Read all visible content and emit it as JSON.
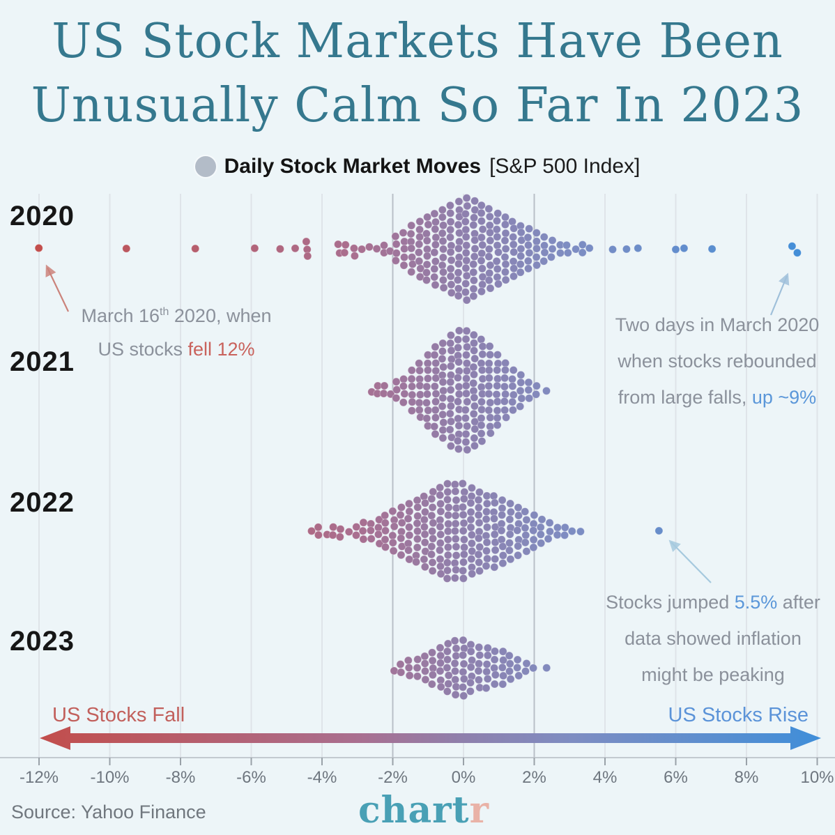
{
  "title": {
    "line1": "US Stock Markets Have Been",
    "line2": "Unusually Calm So Far In 2023"
  },
  "legend": {
    "dot_color": "#b3bcc8",
    "label_bold": "Daily Stock Market Moves",
    "label_suffix": "[S&P 500 Index]"
  },
  "years": {
    "y2020": "2020",
    "y2021": "2021",
    "y2022": "2022",
    "y2023": "2023"
  },
  "annotations": {
    "march16": {
      "line1_pre": "March 16",
      "line1_sup": "th",
      "line1_post": " 2020, when",
      "line2_gray": "US stocks ",
      "line2_accent": "fell 12%",
      "points_to_pct": -11.98
    },
    "rebound": {
      "line1": "Two days in March 2020",
      "line2": "when stocks rebounded",
      "line3_gray": "from large falls, ",
      "line3_accent": "up ~9%",
      "points_to_pct": [
        9.29,
        9.38
      ]
    },
    "inflation": {
      "line1_gray": "Stocks jumped ",
      "line1_accent": "5.5%",
      "line1_post": " after",
      "line2": "data showed inflation",
      "line3": "might be peaking",
      "points_to_pct": 5.54
    }
  },
  "direction_labels": {
    "fall": "US Stocks Fall",
    "rise": "US Stocks Rise"
  },
  "footer": {
    "source": "Source: Yahoo Finance",
    "logo_teal": "chart",
    "logo_pink": "r"
  },
  "colors": {
    "background": "#edf5f8",
    "title": "#35788e",
    "annotation_gray": "#8b919b",
    "accent_red": "#c9625c",
    "accent_blue": "#5b97d9",
    "grid_light": "#dfe4e9",
    "grid_dark": "#b9c0c7",
    "axis_line": "#c3cad0",
    "tick_mark": "#99a1a8",
    "arrow_red": "#cb837b",
    "arrow_blue": "#9fc0da",
    "arrow_lightblue": "#a5c9de",
    "dot_gradient": [
      {
        "at": -12,
        "color": "#c24e4c"
      },
      {
        "at": -3,
        "color": "#a96f90"
      },
      {
        "at": 0,
        "color": "#8e80ad"
      },
      {
        "at": 3,
        "color": "#7e8dc2"
      },
      {
        "at": 10,
        "color": "#3f8ed9"
      }
    ]
  },
  "chart_data": {
    "type": "beeswarm",
    "title": "Daily Stock Market Moves [S&P 500 Index]",
    "x_unit": "percent daily move",
    "axis": {
      "min": -12,
      "max": 10,
      "ticks": [
        -12,
        -10,
        -8,
        -6,
        -4,
        -2,
        0,
        2,
        4,
        6,
        8,
        10
      ],
      "tick_labels": [
        "-12%",
        "-10%",
        "-8%",
        "-6%",
        "-4%",
        "-2%",
        "0%",
        "2%",
        "4%",
        "6%",
        "8%",
        "10%"
      ],
      "grid": true
    },
    "rows": [
      {
        "year": "2020",
        "columns": [
          [
            -11.98,
            1
          ],
          [
            -9.51,
            1
          ],
          [
            -7.6,
            1
          ],
          [
            -5.89,
            1
          ],
          [
            -5.18,
            1
          ],
          [
            -4.76,
            1
          ],
          [
            -4.42,
            3
          ],
          [
            -3.52,
            2
          ],
          [
            -3.34,
            2
          ],
          [
            -3.1,
            2,
            0.4
          ],
          [
            -2.88,
            1
          ],
          [
            -2.66,
            1,
            -0.3
          ],
          [
            -2.46,
            1
          ],
          [
            -2.26,
            2
          ],
          [
            -2.08,
            1,
            0.3
          ],
          [
            -1.9,
            4
          ],
          [
            -1.68,
            5
          ],
          [
            -1.46,
            7
          ],
          [
            -1.24,
            8
          ],
          [
            -1.02,
            9
          ],
          [
            -0.8,
            10
          ],
          [
            -0.58,
            11
          ],
          [
            -0.36,
            12
          ],
          [
            -0.14,
            13
          ],
          [
            0.08,
            14
          ],
          [
            0.3,
            13
          ],
          [
            0.52,
            12
          ],
          [
            0.74,
            11
          ],
          [
            0.96,
            10
          ],
          [
            1.18,
            9
          ],
          [
            1.4,
            8
          ],
          [
            1.62,
            7
          ],
          [
            1.84,
            6
          ],
          [
            2.06,
            5
          ],
          [
            2.28,
            4
          ],
          [
            2.5,
            3
          ],
          [
            2.72,
            2
          ],
          [
            2.94,
            2
          ],
          [
            3.16,
            1
          ],
          [
            3.38,
            2
          ],
          [
            3.54,
            1
          ],
          [
            4.22,
            1
          ],
          [
            4.59,
            1
          ],
          [
            4.95,
            1
          ],
          [
            6.01,
            1
          ],
          [
            6.25,
            1
          ],
          [
            7.04,
            1
          ],
          [
            9.3,
            1,
            -0.4
          ],
          [
            9.42,
            1,
            0.5
          ]
        ]
      },
      {
        "year": "2021",
        "columns": [
          [
            -2.6,
            1,
            0.2
          ],
          [
            -2.45,
            2
          ],
          [
            -2.25,
            2
          ],
          [
            -2.08,
            1,
            0.4
          ],
          [
            -1.9,
            3
          ],
          [
            -1.68,
            4
          ],
          [
            -1.46,
            6
          ],
          [
            -1.24,
            8
          ],
          [
            -1.02,
            10
          ],
          [
            -0.8,
            12
          ],
          [
            -0.58,
            13
          ],
          [
            -0.36,
            15
          ],
          [
            -0.14,
            16
          ],
          [
            0.08,
            16
          ],
          [
            0.3,
            15
          ],
          [
            0.52,
            14
          ],
          [
            0.74,
            12
          ],
          [
            0.96,
            10
          ],
          [
            1.18,
            8
          ],
          [
            1.4,
            6
          ],
          [
            1.62,
            5
          ],
          [
            1.84,
            3
          ],
          [
            2.06,
            2
          ],
          [
            2.36,
            1
          ]
        ]
      },
      {
        "year": "2022",
        "columns": [
          [
            -4.3,
            1
          ],
          [
            -4.1,
            2
          ],
          [
            -3.88,
            1,
            0.4
          ],
          [
            -3.7,
            2
          ],
          [
            -3.48,
            2,
            0.3
          ],
          [
            -3.26,
            1
          ],
          [
            -3.04,
            2
          ],
          [
            -2.82,
            3
          ],
          [
            -2.6,
            3
          ],
          [
            -2.4,
            4
          ],
          [
            -2.2,
            5
          ],
          [
            -1.98,
            6
          ],
          [
            -1.76,
            7
          ],
          [
            -1.54,
            8
          ],
          [
            -1.32,
            9
          ],
          [
            -1.1,
            10
          ],
          [
            -0.88,
            11
          ],
          [
            -0.66,
            12
          ],
          [
            -0.44,
            13
          ],
          [
            -0.22,
            13
          ],
          [
            0.0,
            13
          ],
          [
            0.22,
            12
          ],
          [
            0.44,
            11
          ],
          [
            0.66,
            10
          ],
          [
            0.88,
            10
          ],
          [
            1.1,
            9
          ],
          [
            1.32,
            8
          ],
          [
            1.54,
            7
          ],
          [
            1.76,
            6
          ],
          [
            1.98,
            5
          ],
          [
            2.2,
            4
          ],
          [
            2.42,
            3
          ],
          [
            2.64,
            2
          ],
          [
            2.86,
            2
          ],
          [
            3.08,
            1
          ],
          [
            3.3,
            1
          ],
          [
            5.54,
            1
          ]
        ]
      },
      {
        "year": "2023",
        "columns": [
          [
            -1.98,
            1,
            0.3
          ],
          [
            -1.76,
            2
          ],
          [
            -1.54,
            3
          ],
          [
            -1.32,
            3
          ],
          [
            -1.1,
            4
          ],
          [
            -0.88,
            5
          ],
          [
            -0.66,
            6
          ],
          [
            -0.44,
            7
          ],
          [
            -0.22,
            8
          ],
          [
            0.0,
            8
          ],
          [
            0.22,
            7
          ],
          [
            0.44,
            6
          ],
          [
            0.66,
            6
          ],
          [
            0.88,
            5
          ],
          [
            1.1,
            5
          ],
          [
            1.32,
            4
          ],
          [
            1.54,
            3
          ],
          [
            1.76,
            2
          ],
          [
            1.98,
            1
          ],
          [
            2.34,
            1
          ]
        ]
      }
    ]
  }
}
